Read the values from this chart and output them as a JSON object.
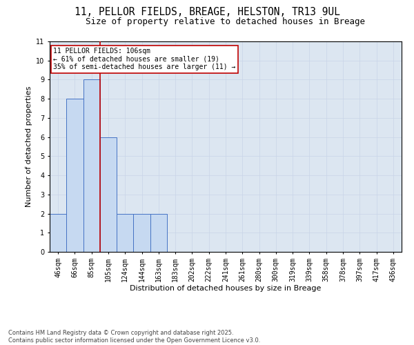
{
  "title_line1": "11, PELLOR FIELDS, BREAGE, HELSTON, TR13 9UL",
  "title_line2": "Size of property relative to detached houses in Breage",
  "xlabel": "Distribution of detached houses by size in Breage",
  "ylabel": "Number of detached properties",
  "categories": [
    "46sqm",
    "66sqm",
    "85sqm",
    "105sqm",
    "124sqm",
    "144sqm",
    "163sqm",
    "183sqm",
    "202sqm",
    "222sqm",
    "241sqm",
    "261sqm",
    "280sqm",
    "300sqm",
    "319sqm",
    "339sqm",
    "358sqm",
    "378sqm",
    "397sqm",
    "417sqm",
    "436sqm"
  ],
  "values": [
    2,
    8,
    9,
    6,
    2,
    2,
    2,
    0,
    0,
    0,
    0,
    0,
    0,
    0,
    0,
    0,
    0,
    0,
    0,
    0,
    0
  ],
  "bar_color": "#c6d9f1",
  "bar_edge_color": "#4472c4",
  "highlight_line_color": "#c00000",
  "annotation_box_text": "11 PELLOR FIELDS: 106sqm\n← 61% of detached houses are smaller (19)\n35% of semi-detached houses are larger (11) →",
  "annotation_box_color": "#c00000",
  "annotation_fill": "white",
  "ylim": [
    0,
    11
  ],
  "yticks": [
    0,
    1,
    2,
    3,
    4,
    5,
    6,
    7,
    8,
    9,
    10,
    11
  ],
  "grid_color": "#c8d4e8",
  "bg_color": "#dce6f1",
  "footnote": "Contains HM Land Registry data © Crown copyright and database right 2025.\nContains public sector information licensed under the Open Government Licence v3.0.",
  "title_fontsize": 10.5,
  "subtitle_fontsize": 9,
  "annotation_fontsize": 7,
  "footnote_fontsize": 6,
  "xlabel_fontsize": 8,
  "ylabel_fontsize": 8,
  "tick_fontsize": 7
}
